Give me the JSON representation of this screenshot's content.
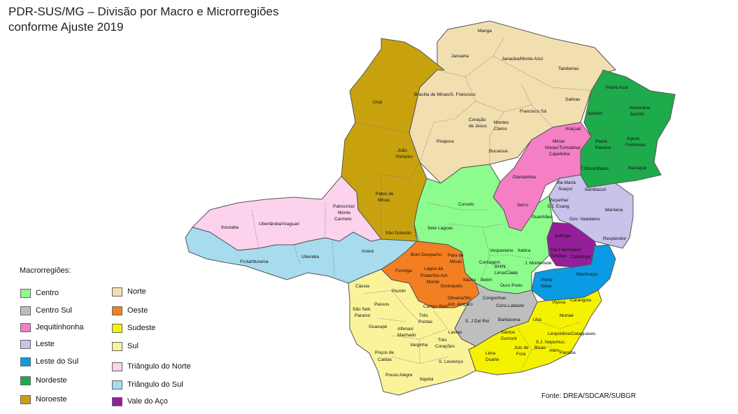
{
  "title_line1": "PDR-SUS/MG – Divisão por Macro e Microrregiões",
  "title_line2": "conforme Ajuste 2019",
  "legend": {
    "title": "Macrorregiões:",
    "items": [
      {
        "label": "Centro",
        "color": "#8CFC8C"
      },
      {
        "label": "Centro Sul",
        "color": "#BEBEBE"
      },
      {
        "label": "Jequitinhonha",
        "color": "#F47FC4"
      },
      {
        "label": "Leste",
        "color": "#C9C2EA"
      },
      {
        "label": "Leste do Sul",
        "color": "#0B9BE4"
      },
      {
        "label": "Nordeste",
        "color": "#1EAB4B"
      },
      {
        "label": "Noroeste",
        "color": "#C8A20E"
      },
      {
        "label": "Norte",
        "color": "#F2DFB0"
      },
      {
        "label": "Oeste",
        "color": "#F47F22"
      },
      {
        "label": "Sudeste",
        "color": "#F5F200"
      },
      {
        "label": "Sul",
        "color": "#FAF39A"
      },
      {
        "label": "Triângulo do Norte",
        "color": "#FCD2EC"
      },
      {
        "label": "Triângulo do Sul",
        "color": "#A6DCEE"
      },
      {
        "label": "Vale do Aço",
        "color": "#951E9A"
      }
    ]
  },
  "source": "Fonte: DREA/SDCAR/SUBGR",
  "labels": {
    "manga": "Manga",
    "januaria": "Januária",
    "janauba": "Janaúba/Monte Azul",
    "taiobeiras": "Taiobeiras",
    "salinas": "Salinas",
    "brasilia": "Brasília de Minas/S. Francisco",
    "coracao_jesus_1": "Coração",
    "coracao_jesus_2": "de Jesus",
    "montes_claros_1": "Montes",
    "montes_claros_2": "Claros",
    "francisco_sa": "Francisco Sá",
    "pirapora": "Pirapora",
    "bocaiuva": "Bocaiúva",
    "unai": "Unaí",
    "joao_pinheiro_1": "João",
    "joao_pinheiro_2": "Pinheiro",
    "patos_1": "Patos de",
    "patos_2": "Minas",
    "sao_gotardo": "São Gotardo",
    "pedra_azul": "Pedra Azul",
    "almenara_1": "Almenara/",
    "almenara_2": "Jacinto",
    "itaobim": "Itaobim",
    "padre_paraiso_1": "Padre",
    "padre_paraiso_2": "Paraíso",
    "aguas_formosas_1": "Águas",
    "aguas_formosas_2": "Formosas",
    "nanuque": "Nanuque",
    "totoni": "T.Otoni/Malac.",
    "itambacuri": "Itambacuri",
    "aracuai": "Araçuaí",
    "minas_novas_1": "Minas",
    "minas_novas_2": "Novas/Turmalina/",
    "minas_novas_3": "Capelinha",
    "diamantina": "Diamantina",
    "serro": "Serro",
    "sta_maria_1": "Sta Maria",
    "sta_maria_2": "Suaçuí",
    "pecanha_1": "Peçanha/",
    "pecanha_2": "S.J. Evang.",
    "mantena": "Mantena",
    "gov_valadares": "Gov. Valadares",
    "resplendor": "Resplendor",
    "guanhaes": "Guanhães",
    "ipatinga": "Ipatinga",
    "coronel_fab_1": "Cel.Fabriciano/",
    "coronel_fab_2": "Timóteo",
    "caratinga": "Caratinga",
    "manhuacu": "Manhuaçu",
    "ponte_nova_1": "Ponte",
    "ponte_nova_2": "Nova",
    "vicosa": "Viçosa",
    "curvelo": "Curvelo",
    "sete_lagoas": "Sete Lagoas",
    "vespasiano": "Vespasiano",
    "itabira": "Itabira",
    "contagem": "Contagem",
    "bh_1": "BH/N",
    "bh_2": "Lima/Caeté",
    "betim": "Betim",
    "jmonlevade": "J. Monlevade",
    "ouro_preto": "Ouro Preto",
    "uberlandia": "Uberlândia/Araguari",
    "ituiutaba": "Ituiutaba",
    "patrocinio_1": "Patrocínio/",
    "patrocinio_2": "Monte",
    "patrocinio_3": "Carmelo",
    "araxa": "Araxá",
    "frutal": "Frutal/Iturama",
    "uberaba": "Uberaba",
    "bom_despacho": "Bom Despacho",
    "para_minas_1": "Pará de",
    "para_minas_2": "Minas",
    "formiga": "Formiga",
    "lagoa_prata_1": "Lagoa da",
    "lagoa_prata_2": "Prata/Sto Ant.",
    "lagoa_prata_3": "Monte",
    "divinopolis": "Divinópolis",
    "itauna": "Itaúna",
    "campo_belo": "Campo Belo",
    "oliveira_1": "Oliveira/Sto",
    "oliveira_2": "Ant. Amparo",
    "congonhas": "Congonhas",
    "cons_lafaiete": "Cons.Lafaiete",
    "sjdelrei": "S. J Del Rei",
    "barbacena": "Barbacena",
    "uba": "Ubá",
    "carangola": "Carangola",
    "muriae": "Muriaé",
    "leopoldina": "Leopoldina/Cataguases",
    "santos_dumont_1": "Santos",
    "santos_dumont_2": "Dumont",
    "sj_nepomuceno": "S.J. Nepomuc.",
    "juiz_fora_1": "Juiz de",
    "juiz_fora_2": "Fora",
    "bicas": "Bicas",
    "alem_paraiba_1": "Além",
    "alem_paraiba_2": "Paraíba",
    "lima_duarte_1": "Lima",
    "lima_duarte_2": "Duarte",
    "cassia": "Cássia",
    "piumhi": "Piumhi",
    "passos": "Passos",
    "sao_seb_1": "São Seb.",
    "sao_seb_2": "Paraíso",
    "tres_pontas_1": "Três",
    "tres_pontas_2": "Pontas",
    "guaxupe": "Guaxupé",
    "alfenas_1": "Alfenas/",
    "alfenas_2": "Machado",
    "lavras": "Lavras",
    "varginha": "Varginha",
    "tres_coracoes_1": "Três",
    "tres_coracoes_2": "Corações",
    "pocos_1": "Poços de",
    "pocos_2": "Caldas",
    "pouso_alegre": "Pouso Alegre",
    "s_lourenco": "S. Lourenço",
    "itajuba": "Itajubá"
  }
}
